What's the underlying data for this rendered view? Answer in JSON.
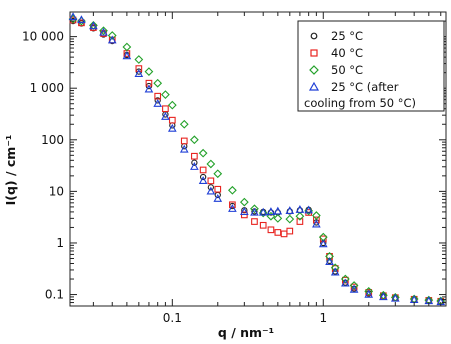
{
  "chart_data": {
    "type": "scatter",
    "title": "",
    "xlabel": "q / nm⁻¹",
    "ylabel": "I(q) / cm⁻¹",
    "xscale": "log",
    "yscale": "log",
    "xlim": [
      0.021,
      6.5
    ],
    "ylim": [
      0.06,
      30000
    ],
    "grid": false,
    "legend_position": "top-right",
    "x_ticks": [
      {
        "value": 0.1,
        "label": "0.1"
      },
      {
        "value": 1,
        "label": "1"
      }
    ],
    "y_ticks": [
      {
        "value": 0.1,
        "label": "0.1"
      },
      {
        "value": 1,
        "label": "1"
      },
      {
        "value": 10,
        "label": "10"
      },
      {
        "value": 100,
        "label": "100"
      },
      {
        "value": 1000,
        "label": "1 000"
      },
      {
        "value": 10000,
        "label": "10 000"
      }
    ],
    "series": [
      {
        "name": "25 °C",
        "marker": "circle",
        "color": "#222222",
        "x": [
          0.022,
          0.025,
          0.03,
          0.035,
          0.04,
          0.05,
          0.06,
          0.07,
          0.08,
          0.09,
          0.1,
          0.12,
          0.14,
          0.16,
          0.18,
          0.2,
          0.25,
          0.3,
          0.35,
          0.4,
          0.45,
          0.5,
          0.6,
          0.7,
          0.8,
          0.9,
          1.0,
          1.1,
          1.2,
          1.4,
          1.6,
          2.0,
          2.5,
          3.0,
          4.0,
          5.0,
          6.0
        ],
        "y": [
          20000,
          18000,
          14500,
          11000,
          8200,
          4400,
          2100,
          1100,
          580,
          310,
          190,
          75,
          36,
          19,
          12,
          8.5,
          5.2,
          4.3,
          4.1,
          4.0,
          3.9,
          3.9,
          4.1,
          4.3,
          4.4,
          2.5,
          1.0,
          0.45,
          0.28,
          0.17,
          0.13,
          0.105,
          0.092,
          0.085,
          0.08,
          0.076,
          0.073
        ]
      },
      {
        "name": "40 °C",
        "marker": "square",
        "color": "#e8231f",
        "x": [
          0.022,
          0.025,
          0.03,
          0.035,
          0.04,
          0.05,
          0.06,
          0.07,
          0.08,
          0.09,
          0.1,
          0.12,
          0.14,
          0.16,
          0.18,
          0.2,
          0.25,
          0.3,
          0.35,
          0.4,
          0.45,
          0.5,
          0.55,
          0.6,
          0.7,
          0.8,
          0.9,
          1.0,
          1.1,
          1.2,
          1.4,
          1.6,
          2.0,
          2.5,
          3.0,
          4.0,
          5.0,
          6.0
        ],
        "y": [
          21000,
          18500,
          15000,
          11500,
          8600,
          4700,
          2400,
          1250,
          700,
          400,
          240,
          95,
          48,
          26,
          16,
          11,
          5.5,
          3.5,
          2.6,
          2.2,
          1.8,
          1.6,
          1.5,
          1.7,
          2.6,
          3.9,
          2.8,
          1.2,
          0.55,
          0.32,
          0.19,
          0.14,
          0.11,
          0.095,
          0.087,
          0.081,
          0.077,
          0.074
        ]
      },
      {
        "name": "50 °C",
        "marker": "diamond",
        "color": "#23a12a",
        "x": [
          0.022,
          0.025,
          0.03,
          0.035,
          0.04,
          0.05,
          0.06,
          0.07,
          0.08,
          0.09,
          0.1,
          0.12,
          0.14,
          0.16,
          0.18,
          0.2,
          0.25,
          0.3,
          0.35,
          0.4,
          0.45,
          0.5,
          0.6,
          0.7,
          0.8,
          0.9,
          1.0,
          1.1,
          1.2,
          1.4,
          1.6,
          2.0,
          2.5,
          3.0,
          4.0,
          5.0,
          6.0
        ],
        "y": [
          22000,
          20000,
          16500,
          13000,
          10500,
          6300,
          3600,
          2100,
          1250,
          750,
          470,
          200,
          100,
          55,
          34,
          22,
          10.5,
          6.2,
          4.6,
          3.8,
          3.3,
          3.0,
          2.9,
          3.3,
          4.2,
          3.4,
          1.3,
          0.55,
          0.33,
          0.2,
          0.15,
          0.115,
          0.097,
          0.088,
          0.082,
          0.078,
          0.075
        ]
      },
      {
        "name": "25 °C (after cooling from 50 °C)",
        "marker": "triangle",
        "color": "#1f3fd6",
        "x": [
          0.022,
          0.025,
          0.03,
          0.035,
          0.04,
          0.05,
          0.06,
          0.07,
          0.08,
          0.09,
          0.1,
          0.12,
          0.14,
          0.16,
          0.18,
          0.2,
          0.25,
          0.3,
          0.35,
          0.4,
          0.45,
          0.5,
          0.6,
          0.7,
          0.8,
          0.9,
          1.0,
          1.1,
          1.2,
          1.4,
          1.6,
          2.0,
          2.5,
          3.0,
          4.0,
          5.0,
          6.0
        ],
        "y": [
          24000,
          21000,
          16000,
          12000,
          8500,
          4200,
          1900,
          950,
          500,
          280,
          165,
          65,
          30,
          16,
          10,
          7.2,
          4.6,
          4.0,
          3.9,
          3.9,
          4.0,
          4.1,
          4.2,
          4.4,
          4.3,
          2.3,
          0.95,
          0.43,
          0.27,
          0.165,
          0.125,
          0.1,
          0.09,
          0.084,
          0.079,
          0.075,
          0.072
        ]
      }
    ]
  },
  "legend": {
    "entries": [
      {
        "label": "25 °C"
      },
      {
        "label": "40 °C"
      },
      {
        "label": "50 °C"
      },
      {
        "label": "25 °C (after",
        "label_cont": "cooling from 50 °C)"
      }
    ]
  }
}
